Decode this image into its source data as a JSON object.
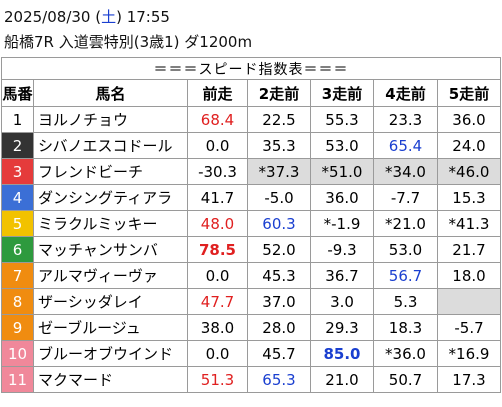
{
  "header": {
    "date_parts": [
      {
        "text": "2025/08/30 ("
      },
      {
        "text": "土",
        "color": "#1a3fd0"
      },
      {
        "text": ") 17:55"
      }
    ],
    "race": "船橋7R 入道雲特別(3歳1) ダ1200m"
  },
  "table": {
    "title": "＝＝＝スピード指数表＝＝＝",
    "columns": [
      "馬番",
      "馬名",
      "前走",
      "2走前",
      "3走前",
      "4走前",
      "5走前"
    ],
    "rows": [
      {
        "num": "1",
        "frame_bg": "#ffffff",
        "frame_fg": "#000000",
        "name": "ヨルノチョウ",
        "cells": [
          {
            "text": "68.4",
            "color": "#e02020"
          },
          {
            "text": "22.5"
          },
          {
            "text": "55.3"
          },
          {
            "text": "23.3"
          },
          {
            "text": "36.0"
          }
        ]
      },
      {
        "num": "2",
        "frame_bg": "#333333",
        "frame_fg": "#ffffff",
        "name": "シバノエスコドール",
        "cells": [
          {
            "text": "0.0"
          },
          {
            "text": "35.3"
          },
          {
            "text": "53.0"
          },
          {
            "text": "65.4",
            "color": "#1a3fd0"
          },
          {
            "text": "24.0"
          }
        ]
      },
      {
        "num": "3",
        "frame_bg": "#e53b3b",
        "frame_fg": "#ffffff",
        "name": "フレンドビーチ",
        "cells": [
          {
            "text": "-30.3"
          },
          {
            "text": "*37.3",
            "bg": "#dcdcdc"
          },
          {
            "text": "*51.0",
            "bg": "#dcdcdc"
          },
          {
            "text": "*34.0",
            "bg": "#dcdcdc"
          },
          {
            "text": "*46.0",
            "bg": "#dcdcdc"
          }
        ]
      },
      {
        "num": "4",
        "frame_bg": "#3b6fd6",
        "frame_fg": "#ffffff",
        "name": "ダンシングティアラ",
        "cells": [
          {
            "text": "41.7"
          },
          {
            "text": "-5.0"
          },
          {
            "text": "36.0"
          },
          {
            "text": "-7.7"
          },
          {
            "text": "15.3"
          }
        ]
      },
      {
        "num": "5",
        "frame_bg": "#f2c200",
        "frame_fg": "#ffffff",
        "name": "ミラクルミッキー",
        "cells": [
          {
            "text": "48.0",
            "color": "#e02020"
          },
          {
            "text": "60.3",
            "color": "#1a3fd0"
          },
          {
            "text": "*-1.9"
          },
          {
            "text": "*21.0"
          },
          {
            "text": "*41.3"
          }
        ]
      },
      {
        "num": "6",
        "frame_bg": "#2e9a3e",
        "frame_fg": "#ffffff",
        "name": "マッチャンサンバ",
        "cells": [
          {
            "text": "78.5",
            "color": "#e02020",
            "bold": true
          },
          {
            "text": "52.0"
          },
          {
            "text": "-9.3"
          },
          {
            "text": "53.0"
          },
          {
            "text": "21.7"
          }
        ]
      },
      {
        "num": "7",
        "frame_bg": "#f08c10",
        "frame_fg": "#ffffff",
        "name": "アルマヴィーヴァ",
        "cells": [
          {
            "text": "0.0"
          },
          {
            "text": "45.3"
          },
          {
            "text": "36.7"
          },
          {
            "text": "56.7",
            "color": "#1a3fd0"
          },
          {
            "text": "18.0"
          }
        ]
      },
      {
        "num": "8",
        "frame_bg": "#f08c10",
        "frame_fg": "#ffffff",
        "name": "ザーシッダレイ",
        "cells": [
          {
            "text": "47.7",
            "color": "#e02020"
          },
          {
            "text": "37.0"
          },
          {
            "text": "3.0"
          },
          {
            "text": "5.3"
          },
          {
            "bg": "#dcdcdc"
          }
        ]
      },
      {
        "num": "9",
        "frame_bg": "#f08c10",
        "frame_fg": "#ffffff",
        "name": "ゼーブルージュ",
        "cells": [
          {
            "text": "38.0"
          },
          {
            "text": "28.0"
          },
          {
            "text": "29.3"
          },
          {
            "text": "18.3"
          },
          {
            "text": "-5.7"
          }
        ]
      },
      {
        "num": "10",
        "frame_bg": "#f0889a",
        "frame_fg": "#ffffff",
        "name": "ブルーオブウインド",
        "cells": [
          {
            "text": "0.0"
          },
          {
            "text": "45.7"
          },
          {
            "text": "85.0",
            "color": "#1a3fd0",
            "bold": true
          },
          {
            "text": "*36.0"
          },
          {
            "text": "*16.9"
          }
        ]
      },
      {
        "num": "11",
        "frame_bg": "#f0889a",
        "frame_fg": "#ffffff",
        "name": "マクマード",
        "cells": [
          {
            "text": "51.3",
            "color": "#e02020"
          },
          {
            "text": "65.3",
            "color": "#1a3fd0"
          },
          {
            "text": "21.0"
          },
          {
            "text": "50.7"
          },
          {
            "text": "17.3"
          }
        ]
      }
    ]
  }
}
